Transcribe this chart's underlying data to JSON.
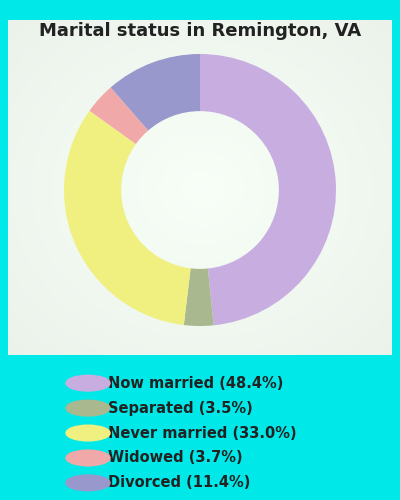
{
  "title": "Marital status in Remington, VA",
  "slices": [
    {
      "label": "Now married (48.4%)",
      "value": 48.4,
      "color": "#c8aee0"
    },
    {
      "label": "Separated (3.5%)",
      "value": 3.5,
      "color": "#aab890"
    },
    {
      "label": "Never married (33.0%)",
      "value": 33.0,
      "color": "#f0f080"
    },
    {
      "label": "Widowed (3.7%)",
      "value": 3.7,
      "color": "#f0a8a8"
    },
    {
      "label": "Divorced (11.4%)",
      "value": 11.4,
      "color": "#9898cc"
    }
  ],
  "bg_outer": "#00e8e8",
  "title_fontsize": 13,
  "legend_fontsize": 10.5,
  "donut_width": 0.42
}
